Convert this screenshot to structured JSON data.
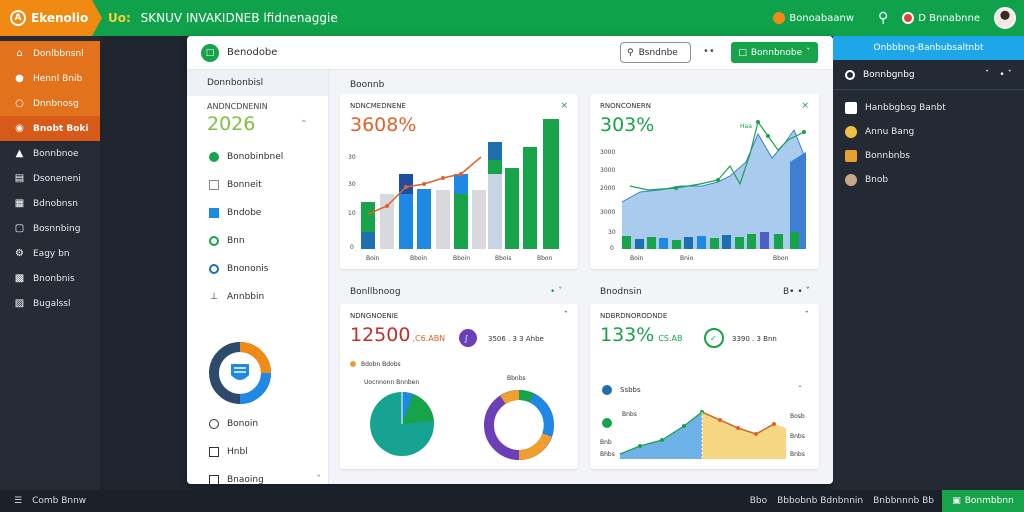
{
  "topbar": {
    "brand": "Ekenolio",
    "title_lead": "Uo:",
    "title": "SKNUV INVAKIDNEB lfidnenaggie",
    "user1": "Bonoabaanw",
    "user2": "D   Bnnabnne"
  },
  "sidebar": {
    "items": [
      {
        "icon": "home-icon",
        "label": "Donlbbnsnl"
      },
      {
        "icon": "user-icon",
        "label": "Hennl Bnib"
      },
      {
        "icon": "chat-icon",
        "label": "Dnnbnosg"
      },
      {
        "icon": "tag-icon",
        "label": "Bnobt Boki"
      },
      {
        "icon": "chart-icon",
        "label": "Bonnbnoe"
      },
      {
        "icon": "list-icon",
        "label": "Dsoneneni"
      },
      {
        "icon": "grid-icon",
        "label": "Bdnobnsn"
      },
      {
        "icon": "mail-icon",
        "label": "Bosnnbing"
      },
      {
        "icon": "settings-icon",
        "label": "Eagy bn"
      },
      {
        "icon": "puzzle-icon",
        "label": "Bnonbnis"
      },
      {
        "icon": "building-icon",
        "label": "Bugalssl"
      }
    ]
  },
  "window": {
    "title": "Benodobe",
    "search_label": "Bsndnbe",
    "more": "••",
    "button_label": "Bonnbnobe"
  },
  "filters": {
    "title": "Donnbonbisl",
    "year_label": "ANDNCDNENIN",
    "year": "2026",
    "items": [
      {
        "icon": "green-dot-icon",
        "label": "Bonobinbnel"
      },
      {
        "icon": "box-icon",
        "label": "Bonneit"
      },
      {
        "icon": "square-icon",
        "label": "Bndobe"
      },
      {
        "icon": "circle-icon",
        "label": "Bnn"
      },
      {
        "icon": "clock-icon",
        "label": "Bnononis"
      },
      {
        "icon": "printer-icon",
        "label": "Annbbin"
      }
    ],
    "bottom_items": [
      {
        "icon": "ring-icon",
        "label": "Bonoin"
      },
      {
        "icon": "box-icon",
        "label": "Hnbl"
      },
      {
        "icon": "square-icon",
        "label": "Bnaoing"
      }
    ]
  },
  "content": {
    "title": "Boonnb",
    "card1": {
      "label": "NDNCMEDNENE",
      "value": "3608%",
      "ticks": [
        "30",
        "30",
        "10",
        "0"
      ],
      "xlabels": [
        "Boin",
        "Bboin",
        "Bboin",
        "Bbois",
        "Bbon"
      ]
    },
    "card2": {
      "label": "RNONCONERN",
      "value": "303%",
      "badge": "Haa",
      "ticks": [
        "3000",
        "3000",
        "2000",
        "3000",
        "30",
        "0"
      ],
      "xlabels": [
        "Boin",
        "Bnio",
        "Bbon"
      ]
    },
    "section_left": "Bonllbnoog",
    "section_right": "Bnodnsin",
    "section_right_ctrl": "B• •",
    "card3": {
      "label": "NDNGNOENIE",
      "value": "12500",
      "value_suffix": ",C6.ABN",
      "secondary": "3506 . 3  3 Ahbe",
      "legend": "Bdobn Bdobs",
      "pie_label": "Uocnnonn Bnnben",
      "donut_label": "Bbnbs",
      "chev": "ˇ"
    },
    "card4": {
      "label": "NDBRDNORODNDE",
      "value": "133%",
      "value_suffix": "CS.AB",
      "secondary": "3390 . 3  Bnn",
      "row1": "Ssbbs",
      "tick_a": "Bnbs",
      "ticks_right": [
        "Bosb",
        "Bnbs",
        "Bnbs"
      ],
      "ticks_left": [
        "Bnb",
        "Bhbs"
      ]
    }
  },
  "rightpanel": {
    "header": "Onbbbng-Banbubsaltnbt",
    "sub": "Bonnbgnbg",
    "items": [
      {
        "icon": "square-icon",
        "label": "Hanbbgbsg Banbt"
      },
      {
        "icon": "user-icon",
        "label": "Annu Bang"
      },
      {
        "icon": "bookmark-icon",
        "label": "Bonnbnbs"
      },
      {
        "icon": "user-icon",
        "label": "Bnob"
      }
    ]
  },
  "bottombar": {
    "left": "Comb Bnnw",
    "right1": "Bbo",
    "right2": "Bbbobnb Bdnbnnin",
    "right3": "Bnbbnnnb Bb",
    "button": "Bonmbbnn"
  }
}
